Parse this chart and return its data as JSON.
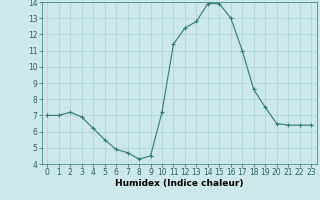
{
  "x": [
    0,
    1,
    2,
    3,
    4,
    5,
    6,
    7,
    8,
    9,
    10,
    11,
    12,
    13,
    14,
    15,
    16,
    17,
    18,
    19,
    20,
    21,
    22,
    23
  ],
  "y": [
    7.0,
    7.0,
    7.2,
    6.9,
    6.2,
    5.5,
    4.9,
    4.7,
    4.3,
    4.5,
    7.2,
    11.4,
    12.4,
    12.8,
    13.9,
    13.9,
    13.0,
    11.0,
    8.6,
    7.5,
    6.5,
    6.4,
    6.4,
    6.4
  ],
  "line_color": "#2e7d6e",
  "marker": "+",
  "marker_size": 3,
  "bg_color": "#cce8e8",
  "grid_color": "#b0d0d0",
  "xlabel": "Humidex (Indice chaleur)",
  "xlim": [
    -0.5,
    23.5
  ],
  "ylim": [
    4,
    14
  ],
  "xticks": [
    0,
    1,
    2,
    3,
    4,
    5,
    6,
    7,
    8,
    9,
    10,
    11,
    12,
    13,
    14,
    15,
    16,
    17,
    18,
    19,
    20,
    21,
    22,
    23
  ],
  "yticks": [
    4,
    5,
    6,
    7,
    8,
    9,
    10,
    11,
    12,
    13,
    14
  ],
  "xlabel_fontsize": 6.5,
  "tick_fontsize": 5.5
}
